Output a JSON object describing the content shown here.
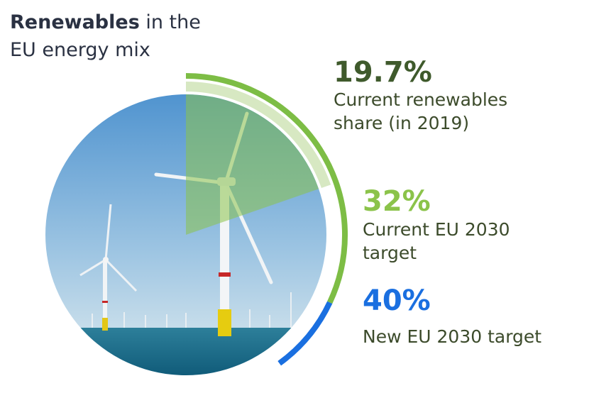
{
  "title": {
    "bold": "Renewables",
    "rest": " in the",
    "line2": "EU energy mix"
  },
  "colors": {
    "dark_green": "#3f5a2c",
    "light_green": "#8bc34a",
    "blue": "#1a6fe0",
    "sky": "#6aa8d8",
    "sea": "#1b6b8a"
  },
  "chart_data": {
    "type": "pie",
    "values": [
      19.7,
      32,
      40
    ],
    "categories": [
      "Current renewables share (in 2019)",
      "Current EU 2030 target",
      "New EU 2030 target"
    ]
  },
  "stats": [
    {
      "value": "19.7%",
      "label_line1": "Current renewables",
      "label_line2": "share (in 2019)"
    },
    {
      "value": "32%",
      "label_line1": "Current EU 2030",
      "label_line2": "target"
    },
    {
      "value": "40%",
      "label_line1": "New EU 2030 target",
      "label_line2": ""
    }
  ]
}
